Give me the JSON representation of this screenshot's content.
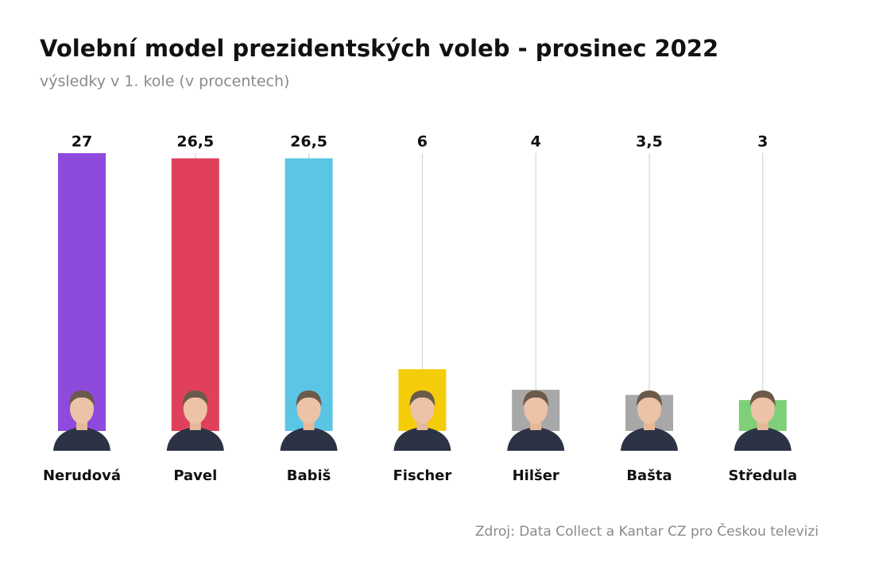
{
  "chart_data": {
    "type": "bar",
    "title": "Volební model prezidentských voleb - prosinec 2022",
    "subtitle": "výsledky v 1. kole (v procentech)",
    "categories": [
      "Nerudová",
      "Pavel",
      "Babiš",
      "Fischer",
      "Hilšer",
      "Bašta",
      "Středula"
    ],
    "values": [
      27,
      26.5,
      26.5,
      6,
      4,
      3.5,
      3
    ],
    "value_labels": [
      "27",
      "26,5",
      "26,5",
      "6",
      "4",
      "3,5",
      "3"
    ],
    "colors": [
      "#8e49dd",
      "#e0405b",
      "#5bc5e6",
      "#f5cc0a",
      "#a8a8a8",
      "#a8a8a8",
      "#7fcf79"
    ],
    "source": "Zdroj: Data Collect a Kantar CZ pro Českou televizi"
  }
}
